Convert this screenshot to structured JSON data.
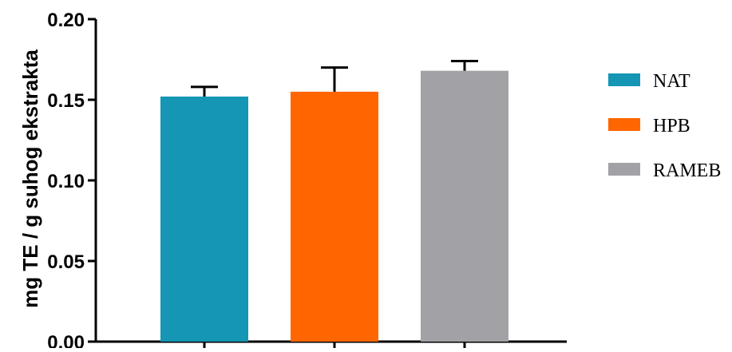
{
  "chart_data": {
    "type": "bar",
    "title": "",
    "xlabel": "",
    "ylabel": "mg TE / g suhog ekstrakta",
    "ylim": [
      0,
      0.2
    ],
    "yticks": [
      "0.00",
      "0.05",
      "0.10",
      "0.15",
      "0.20"
    ],
    "grid": false,
    "legend_position": "right",
    "series": [
      {
        "name": "NAT",
        "value": 0.152,
        "error": 0.006,
        "color": "#1496b4"
      },
      {
        "name": "HPB",
        "value": 0.155,
        "error": 0.015,
        "color": "#ff6600"
      },
      {
        "name": "RAMEB",
        "value": 0.168,
        "error": 0.006,
        "color": "#a2a2a6"
      }
    ]
  }
}
